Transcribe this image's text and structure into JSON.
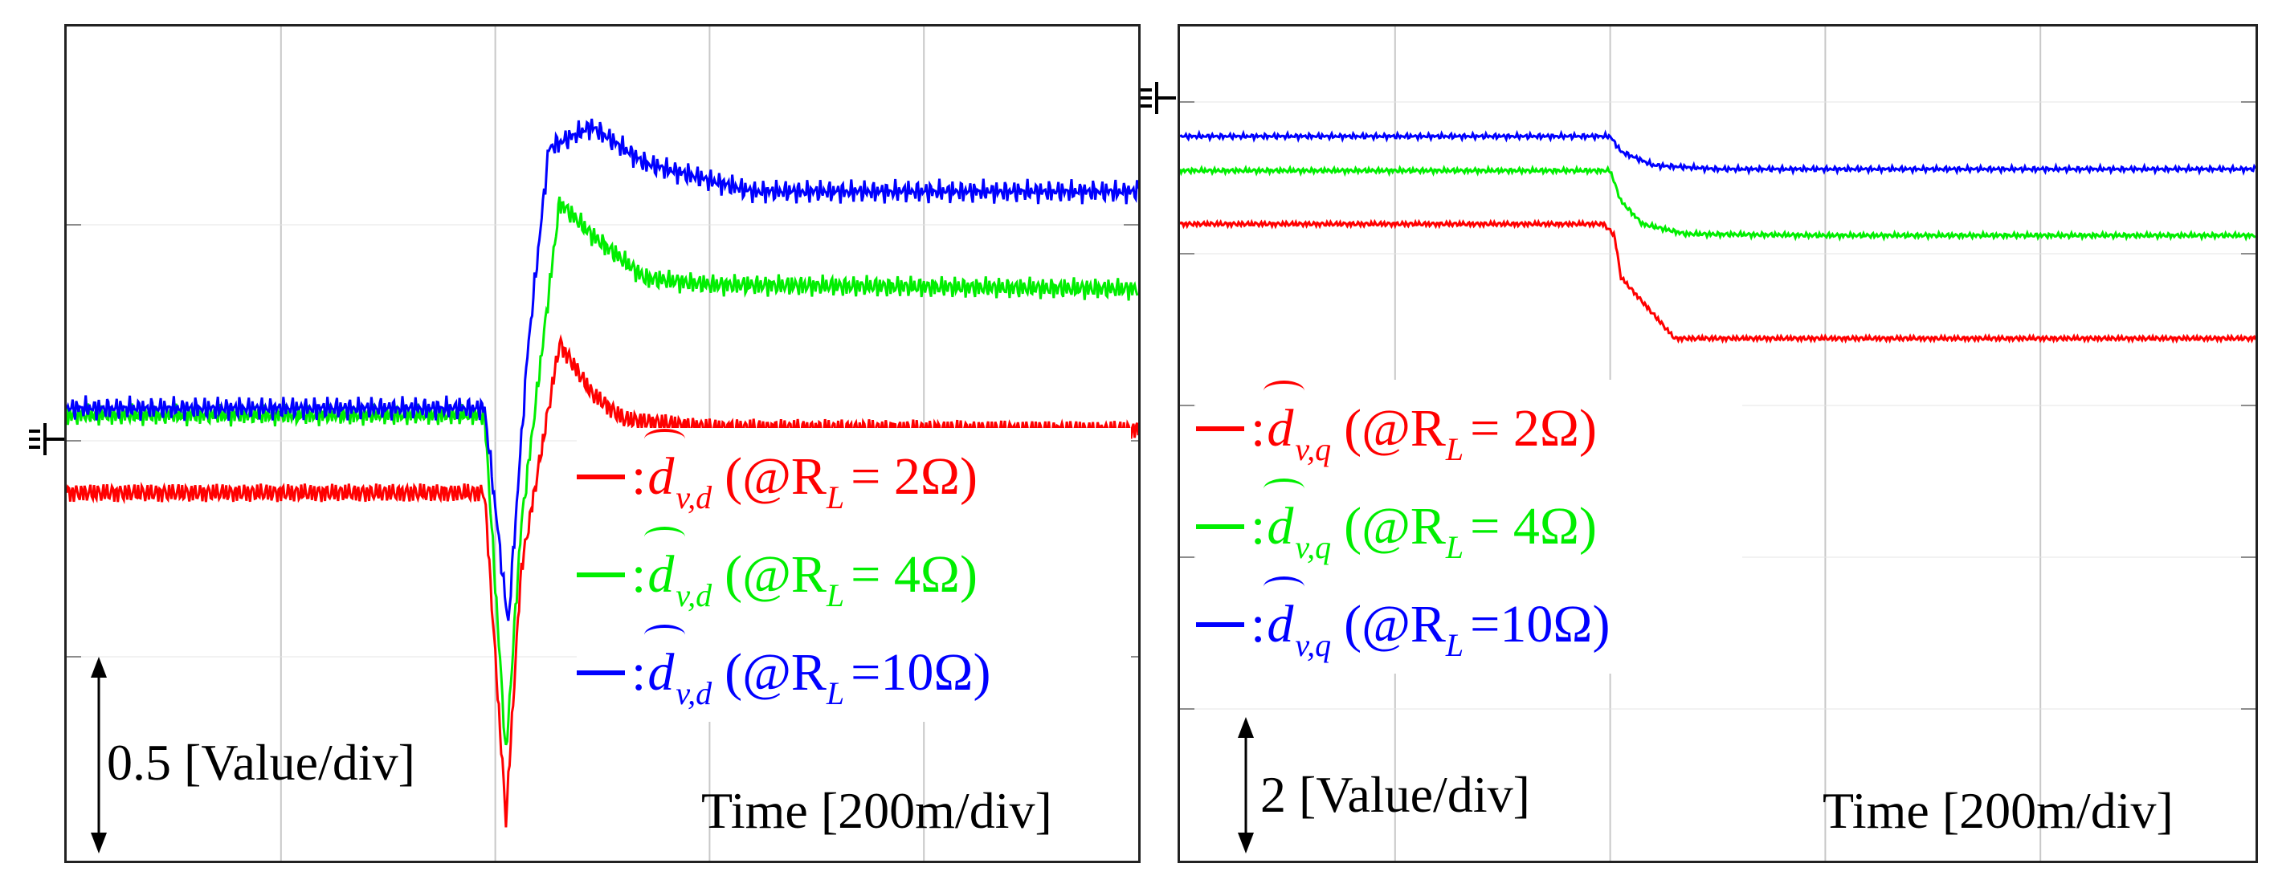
{
  "panels": [
    {
      "id": "left",
      "scale_label": "0.5 [Value/div]",
      "time_label": "Time [200m/div]",
      "legend": [
        {
          "sep": ":",
          "sym": "d",
          "sub": "v,d",
          "cond_prefix": "(@R",
          "cond_sub": "L",
          "cond_suffix": "= 2Ω)",
          "color": "#ff0000"
        },
        {
          "sep": ":",
          "sym": "d",
          "sub": "v,d",
          "cond_prefix": "(@R",
          "cond_sub": "L",
          "cond_suffix": "= 4Ω)",
          "color": "#00ee00"
        },
        {
          "sep": ":",
          "sym": "d",
          "sub": "v,d",
          "cond_prefix": "(@R",
          "cond_sub": "L",
          "cond_suffix": "=10Ω)",
          "color": "#0000ff"
        }
      ]
    },
    {
      "id": "right",
      "scale_label": "2 [Value/div]",
      "time_label": "Time [200m/div]",
      "legend": [
        {
          "sep": ":",
          "sym": "d",
          "sub": "v,q",
          "cond_prefix": "(@R",
          "cond_sub": "L",
          "cond_suffix": "= 2Ω)",
          "color": "#ff0000"
        },
        {
          "sep": ":",
          "sym": "d",
          "sub": "v,q",
          "cond_prefix": "(@R",
          "cond_sub": "L",
          "cond_suffix": "= 4Ω)",
          "color": "#00ee00"
        },
        {
          "sep": ":",
          "sym": "d",
          "sub": "v,q",
          "cond_prefix": "(@R",
          "cond_sub": "L",
          "cond_suffix": "=10Ω)",
          "color": "#0000ff"
        }
      ]
    }
  ],
  "chart_data": [
    {
      "type": "line",
      "title": "",
      "xlabel": "Time [200m/div]",
      "ylabel": "0.5 [Value/div]",
      "x_divisions": 5,
      "y_divisions": 4,
      "grid": true,
      "series": [
        {
          "name": "d_v,d (@R_L = 2Ω)",
          "color": "#ff0000",
          "points": [
            [
              0,
              -0.24
            ],
            [
              1.95,
              -0.24
            ],
            [
              2.05,
              -1.75
            ],
            [
              2.12,
              -0.6
            ],
            [
              2.3,
              0.45
            ],
            [
              2.45,
              0.22
            ],
            [
              2.6,
              0.1
            ],
            [
              3.0,
              0.06
            ],
            [
              5.0,
              0.05
            ]
          ],
          "ripple": 0.03
        },
        {
          "name": "d_v,d (@R_L = 4Ω)",
          "color": "#00ee00",
          "points": [
            [
              0,
              0.12
            ],
            [
              1.95,
              0.12
            ],
            [
              2.05,
              -1.45
            ],
            [
              2.12,
              -0.4
            ],
            [
              2.3,
              1.1
            ],
            [
              2.45,
              0.95
            ],
            [
              2.7,
              0.75
            ],
            [
              3.0,
              0.72
            ],
            [
              5.0,
              0.7
            ]
          ],
          "ripple": 0.03
        },
        {
          "name": "d_v,d (@R_L = 10Ω)",
          "color": "#0000ff",
          "points": [
            [
              0,
              0.15
            ],
            [
              1.95,
              0.15
            ],
            [
              2.06,
              -0.85
            ],
            [
              2.15,
              0.4
            ],
            [
              2.25,
              1.35
            ],
            [
              2.45,
              1.45
            ],
            [
              2.7,
              1.28
            ],
            [
              3.2,
              1.15
            ],
            [
              5.0,
              1.15
            ]
          ],
          "ripple": 0.03
        }
      ]
    },
    {
      "type": "line",
      "title": "",
      "xlabel": "Time [200m/div]",
      "ylabel": "2 [Value/div]",
      "x_divisions": 5,
      "y_divisions": 5,
      "grid": true,
      "series": [
        {
          "name": "d_v,q (@R_L = 2Ω)",
          "color": "#ff0000",
          "points": [
            [
              0,
              -1.6
            ],
            [
              1.97,
              -1.6
            ],
            [
              2.02,
              -1.75
            ],
            [
              2.05,
              -2.3
            ],
            [
              2.3,
              -3.1
            ],
            [
              2.6,
              -3.1
            ],
            [
              5.0,
              -3.1
            ]
          ],
          "ripple": 0.02
        },
        {
          "name": "d_v,q (@R_L = 4Ω)",
          "color": "#00ee00",
          "points": [
            [
              0,
              -0.9
            ],
            [
              2.0,
              -0.9
            ],
            [
              2.05,
              -1.3
            ],
            [
              2.15,
              -1.6
            ],
            [
              2.35,
              -1.73
            ],
            [
              3.0,
              -1.75
            ],
            [
              5.0,
              -1.75
            ]
          ],
          "ripple": 0.02
        },
        {
          "name": "d_v,q (@R_L = 10Ω)",
          "color": "#0000ff",
          "points": [
            [
              0,
              -0.45
            ],
            [
              2.0,
              -0.45
            ],
            [
              2.05,
              -0.65
            ],
            [
              2.2,
              -0.83
            ],
            [
              2.5,
              -0.88
            ],
            [
              5.0,
              -0.88
            ]
          ],
          "ripple": 0.02
        }
      ]
    }
  ]
}
